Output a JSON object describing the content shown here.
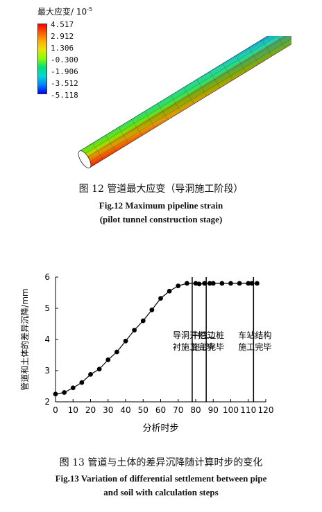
{
  "figure12": {
    "legend_title": "最大应变/ 10",
    "legend_exp": "-5",
    "legend_values": [
      "4.517",
      "2.912",
      "1.306",
      "-0.300",
      "-1.906",
      "-3.512",
      "-5.118"
    ],
    "caption_cn": "图 12    管道最大应变（导洞施工阶段）",
    "caption_en_1": "Fig.12    Maximum pipeline strain",
    "caption_en_2": "(pilot tunnel construction stage)"
  },
  "figure13": {
    "caption_cn": "图 13    管道与土体的差异沉降随计算时步的变化",
    "caption_en_1": "Fig.13    Variation of differential settlement between pipe",
    "caption_en_2": "and soil with calculation steps"
  },
  "chart_data": {
    "type": "line",
    "xlabel": "分析时步",
    "ylabel": "管道和土体的差异沉降/mm",
    "xlim": [
      0,
      120
    ],
    "ylim": [
      2,
      6
    ],
    "xticks": [
      "0",
      "10",
      "20",
      "30",
      "40",
      "50",
      "60",
      "70",
      "80",
      "90",
      "100",
      "110",
      "120"
    ],
    "yticks": [
      "2",
      "3",
      "4",
      "5",
      "6"
    ],
    "x": [
      0,
      5,
      10,
      15,
      20,
      25,
      30,
      35,
      40,
      45,
      50,
      55,
      60,
      65,
      70,
      75,
      80,
      82,
      85,
      88,
      90,
      95,
      100,
      105,
      110,
      112,
      115
    ],
    "y": [
      2.25,
      2.3,
      2.45,
      2.62,
      2.88,
      3.05,
      3.35,
      3.6,
      3.95,
      4.3,
      4.6,
      4.95,
      5.32,
      5.55,
      5.72,
      5.8,
      5.8,
      5.78,
      5.8,
      5.8,
      5.8,
      5.8,
      5.8,
      5.8,
      5.8,
      5.8,
      5.8
    ],
    "vlines": [
      {
        "x": 78,
        "label_1": "导洞开挖二",
        "label_2": "衬施工完毕"
      },
      {
        "x": 86,
        "label_1": "中柱边桩",
        "label_2": "施工完毕"
      },
      {
        "x": 113,
        "label_1": "车站结构",
        "label_2": "施工完毕"
      }
    ]
  }
}
